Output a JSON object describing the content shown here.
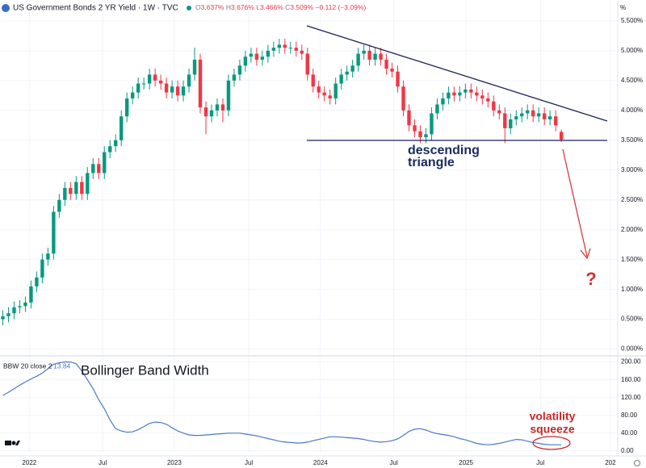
{
  "chart_data": [
    {
      "type": "candlestick",
      "title": "US Government Bonds 2 YR Yield · 1W · TVC",
      "ohlc_header": [
        {
          "label": "O",
          "value": "3.637%"
        },
        {
          "label": "H",
          "value": "3.676%"
        },
        {
          "label": "L",
          "value": "3.466%"
        },
        {
          "label": "C",
          "value": "3.509%"
        }
      ],
      "change": "−0.112 (−3.09%)",
      "unit": "%",
      "up_color": "#089981",
      "down_color": "#f23645",
      "open": [
        0.5,
        0.55,
        0.6,
        0.7,
        0.72,
        0.78,
        1.05,
        1.2,
        1.5,
        1.6,
        2.3,
        2.5,
        2.7,
        2.6,
        2.8,
        2.6,
        2.95,
        3.1,
        2.95,
        3.3,
        3.4,
        3.5,
        3.9,
        4.2,
        4.3,
        4.45,
        4.45,
        4.6,
        4.5,
        4.45,
        4.3,
        4.4,
        4.25,
        4.4,
        4.6,
        4.85,
        4.05,
        3.9,
        4.0,
        4.1,
        4.0,
        4.5,
        4.6,
        4.75,
        4.9,
        4.95,
        4.85,
        4.9,
        5.0,
        5.05,
        5.1,
        5.05,
        5.05,
        5.0,
        4.95,
        4.6,
        4.4,
        4.3,
        4.25,
        4.2,
        4.45,
        4.6,
        4.65,
        4.75,
        4.95,
        5.0,
        4.85,
        4.95,
        4.85,
        4.7,
        4.65,
        4.4,
        4.0,
        3.75,
        3.65,
        3.55,
        3.6,
        3.95,
        4.1,
        4.2,
        4.3,
        4.25,
        4.3,
        4.35,
        4.3,
        4.25,
        4.2,
        4.15,
        4.0,
        3.95,
        3.7,
        3.85,
        3.9,
        3.95,
        4.0,
        3.9,
        3.95,
        3.85,
        3.9,
        3.64
      ],
      "high": [
        0.65,
        0.7,
        0.8,
        0.82,
        0.88,
        1.15,
        1.3,
        1.6,
        1.7,
        2.4,
        2.6,
        2.8,
        2.8,
        2.9,
        2.9,
        3.05,
        3.2,
        3.2,
        3.4,
        3.5,
        3.6,
        4.0,
        4.3,
        4.4,
        4.55,
        4.55,
        4.7,
        4.7,
        4.6,
        4.55,
        4.5,
        4.5,
        4.5,
        4.7,
        5.05,
        4.95,
        4.15,
        4.1,
        4.2,
        4.2,
        4.6,
        4.7,
        4.85,
        5.0,
        5.05,
        5.05,
        5.0,
        5.1,
        5.15,
        5.2,
        5.2,
        5.15,
        5.15,
        5.1,
        5.05,
        4.7,
        4.5,
        4.4,
        4.35,
        4.55,
        4.7,
        4.75,
        4.85,
        5.05,
        5.1,
        5.1,
        5.05,
        5.05,
        4.95,
        4.8,
        4.75,
        4.5,
        4.1,
        3.85,
        3.75,
        3.7,
        4.05,
        4.2,
        4.3,
        4.4,
        4.4,
        4.4,
        4.45,
        4.45,
        4.4,
        4.35,
        4.3,
        4.25,
        4.1,
        4.05,
        3.95,
        4.0,
        4.05,
        4.1,
        4.1,
        4.05,
        4.05,
        4.0,
        4.0,
        3.68
      ],
      "low": [
        0.4,
        0.45,
        0.5,
        0.6,
        0.62,
        0.68,
        0.95,
        1.1,
        1.4,
        1.5,
        2.2,
        2.4,
        2.5,
        2.5,
        2.5,
        2.5,
        2.85,
        2.85,
        2.85,
        3.2,
        3.3,
        3.4,
        3.8,
        4.1,
        4.2,
        4.35,
        4.35,
        4.4,
        4.35,
        4.2,
        4.2,
        4.15,
        4.15,
        4.3,
        4.5,
        3.95,
        3.6,
        3.8,
        3.9,
        3.8,
        3.9,
        4.4,
        4.5,
        4.65,
        4.8,
        4.75,
        4.75,
        4.8,
        4.9,
        4.95,
        4.95,
        4.95,
        4.9,
        4.85,
        4.5,
        4.3,
        4.2,
        4.15,
        4.1,
        4.1,
        4.35,
        4.5,
        4.55,
        4.65,
        4.85,
        4.75,
        4.75,
        4.75,
        4.6,
        4.55,
        4.3,
        3.9,
        3.65,
        3.55,
        3.45,
        3.45,
        3.5,
        3.85,
        4.0,
        4.1,
        4.15,
        4.15,
        4.2,
        4.2,
        4.15,
        4.1,
        4.05,
        3.9,
        3.85,
        3.45,
        3.6,
        3.75,
        3.8,
        3.85,
        3.8,
        3.8,
        3.75,
        3.75,
        3.65,
        3.47
      ],
      "close": [
        0.55,
        0.6,
        0.7,
        0.72,
        0.78,
        1.05,
        1.2,
        1.5,
        1.6,
        2.3,
        2.5,
        2.7,
        2.6,
        2.8,
        2.6,
        2.95,
        3.1,
        2.95,
        3.3,
        3.4,
        3.5,
        3.9,
        4.2,
        4.3,
        4.45,
        4.45,
        4.6,
        4.5,
        4.45,
        4.3,
        4.4,
        4.25,
        4.4,
        4.6,
        4.85,
        4.05,
        3.9,
        4.0,
        4.1,
        4.0,
        4.5,
        4.6,
        4.75,
        4.9,
        4.95,
        4.85,
        4.9,
        5.0,
        5.05,
        5.1,
        5.05,
        5.05,
        5.0,
        4.95,
        4.6,
        4.4,
        4.3,
        4.25,
        4.2,
        4.45,
        4.6,
        4.65,
        4.75,
        4.95,
        5.0,
        4.85,
        4.95,
        4.85,
        4.7,
        4.65,
        4.4,
        4.0,
        3.75,
        3.65,
        3.55,
        3.6,
        3.95,
        4.1,
        4.2,
        4.3,
        4.25,
        4.3,
        4.35,
        4.3,
        4.25,
        4.2,
        4.15,
        4.0,
        3.95,
        3.7,
        3.85,
        3.9,
        3.95,
        4.0,
        3.9,
        3.95,
        3.85,
        3.9,
        3.75,
        3.51
      ],
      "ylim": [
        -0.1,
        5.85
      ],
      "yticks": [
        {
          "value": 0,
          "label": "0.000%"
        },
        {
          "value": 0.5,
          "label": "0.500%"
        },
        {
          "value": 1,
          "label": "1.000%"
        },
        {
          "value": 1.5,
          "label": "1.500%"
        },
        {
          "value": 2,
          "label": "2.000%"
        },
        {
          "value": 2.5,
          "label": "2.500%"
        },
        {
          "value": 3,
          "label": "3.000%"
        },
        {
          "value": 3.5,
          "label": "3.500%"
        },
        {
          "value": 4,
          "label": "4.000%"
        },
        {
          "value": 4.5,
          "label": "4.500%"
        },
        {
          "value": 5,
          "label": "5.000%"
        },
        {
          "value": 5.5,
          "label": "5.500%"
        }
      ],
      "grid": true,
      "pattern_label": [
        "descending",
        "triangle"
      ],
      "target_label": "?"
    },
    {
      "type": "line",
      "indicator": "BBW 20 close 2",
      "label": "Bollinger Band Width",
      "annotation": [
        "volatility",
        "squeeze"
      ],
      "color": "#4a78c8",
      "values": [
        125,
        132,
        140,
        148,
        155,
        162,
        168,
        175,
        185,
        195,
        198,
        200,
        200,
        196,
        180,
        160,
        140,
        115,
        95,
        70,
        50,
        45,
        42,
        43,
        48,
        55,
        62,
        65,
        64,
        60,
        52,
        45,
        40,
        36,
        35,
        35,
        36,
        37,
        38,
        39,
        40,
        40,
        40,
        38,
        36,
        34,
        31,
        28,
        25,
        22,
        20,
        19,
        18,
        18,
        20,
        23,
        26,
        29,
        32,
        32,
        31,
        30,
        29,
        28,
        26,
        23,
        21,
        20,
        21,
        23,
        27,
        35,
        44,
        49,
        50,
        47,
        42,
        39,
        37,
        35,
        32,
        28,
        25,
        21,
        17,
        15,
        14,
        15,
        17,
        20,
        23,
        26,
        25,
        22,
        19,
        17,
        15,
        14,
        14,
        13.84
      ],
      "ylim": [
        -2,
        212
      ],
      "yticks": [
        {
          "value": 0,
          "label": "0.00"
        },
        {
          "value": 40,
          "label": "40.00"
        },
        {
          "value": 80,
          "label": "80.00"
        },
        {
          "value": 120,
          "label": "120.00"
        },
        {
          "value": 160,
          "label": "160.00"
        },
        {
          "value": 200,
          "label": "200.00"
        }
      ],
      "xlim": [
        -0.5,
        109
      ],
      "xticks": [
        {
          "value": 4.7,
          "label": "2022"
        },
        {
          "value": 17.7,
          "label": "Jul"
        },
        {
          "value": 30.4,
          "label": "2023"
        },
        {
          "value": 43.6,
          "label": "Jul"
        },
        {
          "value": 56.3,
          "label": "2024"
        },
        {
          "value": 69.3,
          "label": "Jul"
        },
        {
          "value": 82.1,
          "label": "2025"
        },
        {
          "value": 95.3,
          "label": "Jul"
        },
        {
          "value": 107.7,
          "label": "202"
        }
      ],
      "grid": true
    }
  ]
}
